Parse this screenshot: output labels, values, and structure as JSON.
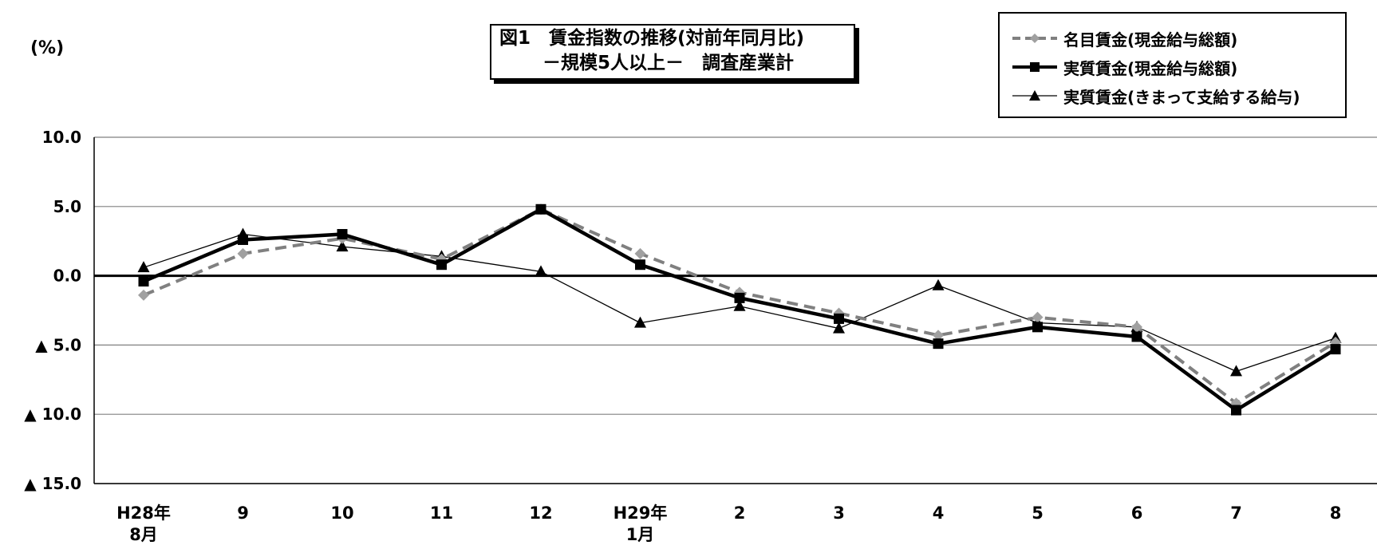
{
  "unit_label": "(%)",
  "title": {
    "line1": "図1　賃金指数の推移(対前年同月比)",
    "line2": "－規模5人以上－　調査産業計"
  },
  "colors": {
    "nominal": "#808080",
    "real_total": "#000000",
    "real_regular": "#000000",
    "grid": "#808080"
  },
  "chart_data": {
    "type": "line",
    "title": "図1　賃金指数の推移(対前年同月比) －規模5人以上－　調査産業計",
    "ylabel": "(%)",
    "xlabel": "",
    "ylim": [
      -15,
      10
    ],
    "yticks": [
      {
        "value": 10,
        "label": "10.0"
      },
      {
        "value": 5,
        "label": "5.0"
      },
      {
        "value": 0,
        "label": "0.0"
      },
      {
        "value": -5,
        "label": "▲ 5.0"
      },
      {
        "value": -10,
        "label": "▲ 10.0"
      },
      {
        "value": -15,
        "label": "▲ 15.0"
      }
    ],
    "categories": [
      [
        "H28年",
        "8月"
      ],
      [
        "9"
      ],
      [
        "10"
      ],
      [
        "11"
      ],
      [
        "12"
      ],
      [
        "H29年",
        "1月"
      ],
      [
        "2"
      ],
      [
        "3"
      ],
      [
        "4"
      ],
      [
        "5"
      ],
      [
        "6"
      ],
      [
        "7"
      ],
      [
        "8"
      ]
    ],
    "grid": true,
    "legend_position": "top-right",
    "series": [
      {
        "name": "名目賃金(現金給与総額)",
        "style": "dashed-diamond",
        "values": [
          -1.4,
          1.6,
          2.7,
          1.2,
          4.8,
          1.6,
          -1.2,
          -2.7,
          -4.3,
          -3.0,
          -3.7,
          -9.2,
          -4.8
        ]
      },
      {
        "name": "実質賃金(現金給与総額)",
        "style": "bold-square",
        "values": [
          -0.4,
          2.6,
          3.0,
          0.8,
          4.8,
          0.8,
          -1.6,
          -3.1,
          -4.9,
          -3.7,
          -4.4,
          -9.7,
          -5.3
        ]
      },
      {
        "name": "実質賃金(きまって支給する給与)",
        "style": "thin-triangle",
        "values": [
          0.6,
          3.0,
          2.1,
          1.4,
          0.3,
          -3.4,
          -2.2,
          -3.8,
          -0.7,
          -3.4,
          -3.7,
          -6.9,
          -4.5
        ]
      }
    ]
  }
}
